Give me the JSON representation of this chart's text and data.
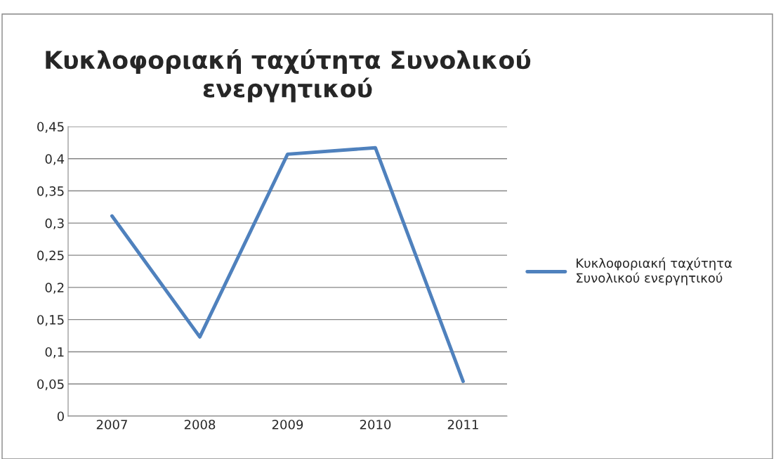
{
  "chart_data": {
    "type": "line",
    "title": "Κυκλοφοριακή ταχύτητα Συνολικού\nενεργητικού",
    "categories": [
      "2007",
      "2008",
      "2009",
      "2010",
      "2011"
    ],
    "series": [
      {
        "name": "Κυκλοφοριακή ταχύτητα\nΣυνολικού ενεργητικού",
        "color": "#4f81bd",
        "values": [
          0.311,
          0.123,
          0.407,
          0.417,
          0.054
        ]
      }
    ],
    "ylim": [
      0,
      0.45
    ],
    "yticks": [
      0,
      {
        "value": 0.05,
        "label": "0,05"
      },
      {
        "value": 0.1,
        "label": "0,1"
      },
      {
        "value": 0.15,
        "label": "0,15"
      },
      {
        "value": 0.2,
        "label": "0,2"
      },
      {
        "value": 0.25,
        "label": "0,25"
      },
      {
        "value": 0.3,
        "label": "0,3"
      },
      {
        "value": 0.35,
        "label": "0,35"
      },
      {
        "value": 0.4,
        "label": "0,4"
      },
      {
        "value": 0.45,
        "label": "0,45"
      }
    ],
    "grid": "y",
    "legend": "right",
    "marker": "none",
    "line_style": "solid"
  }
}
